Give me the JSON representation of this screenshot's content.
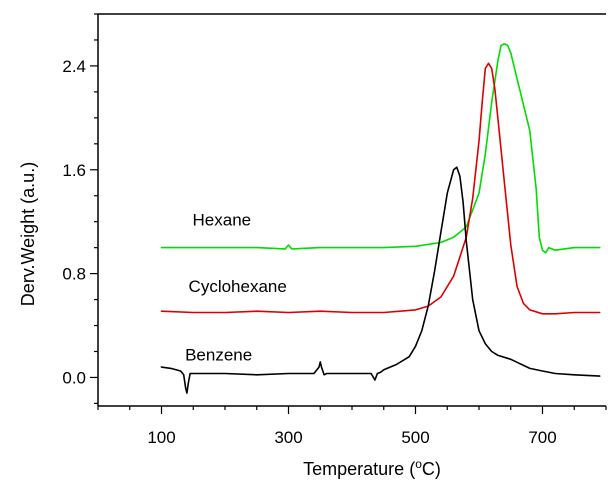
{
  "chart_data": {
    "type": "line",
    "xlabel": "Temperature",
    "xlabel_unit_prefix": " (",
    "xlabel_unit_sup": "o",
    "xlabel_unit_suffix": "C)",
    "ylabel": "Derv.Weight (a.u.)",
    "xlim": [
      0,
      800
    ],
    "ylim": [
      -0.22,
      2.8
    ],
    "x_ticks": [
      100,
      300,
      500,
      700
    ],
    "x_tick_labels": [
      "100",
      "300",
      "500",
      "700"
    ],
    "x_minor_step": 50,
    "y_ticks": [
      0.0,
      0.8,
      1.6,
      2.4
    ],
    "y_tick_labels": [
      "0.0",
      "0.8",
      "1.6",
      "2.4"
    ],
    "y_minor_step": 0.2,
    "grid": false,
    "legend": "inline labels",
    "series": [
      {
        "name": "Hexane",
        "color": "#00dd00",
        "x": [
          100,
          150,
          200,
          250,
          295,
          300,
          305,
          350,
          400,
          450,
          500,
          540,
          560,
          580,
          600,
          610,
          620,
          630,
          635,
          640,
          645,
          650,
          660,
          670,
          680,
          690,
          695,
          700,
          705,
          710,
          720,
          750,
          790
        ],
        "y": [
          1.0,
          1.0,
          1.0,
          1.0,
          0.99,
          1.02,
          0.99,
          1.0,
          1.0,
          1.0,
          1.01,
          1.04,
          1.08,
          1.16,
          1.42,
          1.72,
          2.12,
          2.45,
          2.56,
          2.57,
          2.56,
          2.5,
          2.3,
          2.1,
          1.9,
          1.45,
          1.08,
          0.98,
          0.96,
          1.0,
          0.98,
          1.0,
          1.0
        ]
      },
      {
        "name": "Cyclohexane",
        "color": "#dd0000",
        "x": [
          100,
          150,
          200,
          250,
          300,
          350,
          400,
          450,
          500,
          520,
          540,
          560,
          580,
          590,
          600,
          605,
          610,
          615,
          620,
          625,
          630,
          640,
          650,
          660,
          670,
          680,
          700,
          720,
          750,
          790
        ],
        "y": [
          0.51,
          0.5,
          0.5,
          0.51,
          0.5,
          0.51,
          0.5,
          0.5,
          0.52,
          0.55,
          0.62,
          0.78,
          1.08,
          1.38,
          1.82,
          2.12,
          2.38,
          2.42,
          2.38,
          2.22,
          1.98,
          1.5,
          1.02,
          0.7,
          0.57,
          0.52,
          0.49,
          0.49,
          0.5,
          0.5
        ]
      },
      {
        "name": "Benzene",
        "color": "#000000",
        "x": [
          100,
          115,
          130,
          135,
          138,
          140,
          142,
          145,
          150,
          160,
          200,
          250,
          300,
          340,
          348,
          350,
          352,
          356,
          360,
          400,
          430,
          436,
          440,
          445,
          450,
          470,
          490,
          500,
          510,
          520,
          530,
          540,
          550,
          560,
          565,
          570,
          575,
          580,
          590,
          600,
          610,
          620,
          630,
          650,
          680,
          700,
          720,
          750,
          790
        ],
        "y": [
          0.08,
          0.07,
          0.05,
          0.02,
          -0.08,
          -0.12,
          -0.05,
          0.03,
          0.03,
          0.03,
          0.03,
          0.02,
          0.03,
          0.03,
          0.08,
          0.12,
          0.08,
          0.02,
          0.03,
          0.03,
          0.03,
          -0.02,
          0.03,
          0.04,
          0.06,
          0.1,
          0.16,
          0.24,
          0.36,
          0.55,
          0.82,
          1.12,
          1.42,
          1.6,
          1.62,
          1.55,
          1.35,
          1.05,
          0.6,
          0.36,
          0.26,
          0.2,
          0.17,
          0.14,
          0.07,
          0.05,
          0.03,
          0.02,
          0.01
        ]
      }
    ],
    "annotations": [
      {
        "text": "Hexane",
        "x": 195,
        "y": 1.17
      },
      {
        "text": "Cyclohexane",
        "x": 220,
        "y": 0.66
      },
      {
        "text": "Benzene",
        "x": 190,
        "y": 0.13
      }
    ]
  }
}
